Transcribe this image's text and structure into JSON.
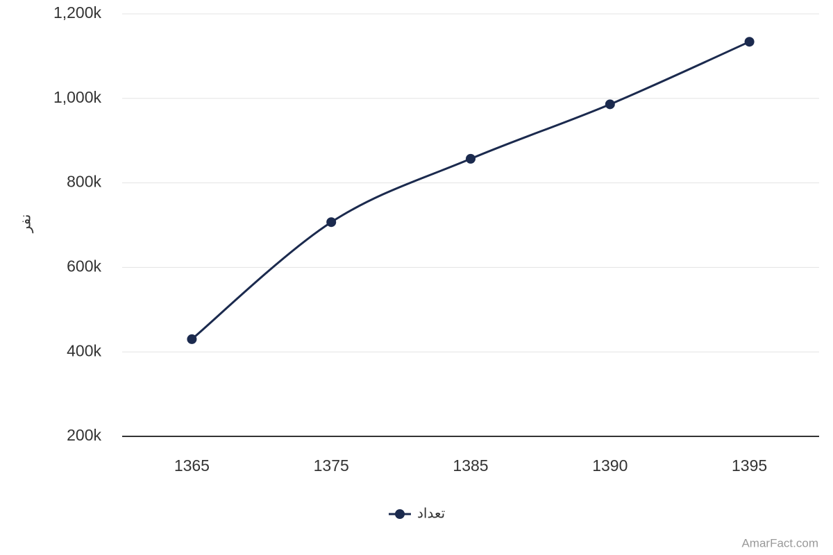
{
  "chart_data": {
    "type": "line",
    "y_axis_title": "نفر",
    "categories": [
      "1365",
      "1375",
      "1385",
      "1390",
      "1395"
    ],
    "series": [
      {
        "name": "تعداد",
        "color": "#1b2a4e",
        "values": [
          430000,
          707000,
          857000,
          986000,
          1134000
        ]
      }
    ],
    "ylim": [
      200000,
      1200000
    ],
    "yticks": [
      {
        "value": 200000,
        "label": "200k"
      },
      {
        "value": 400000,
        "label": "400k"
      },
      {
        "value": 600000,
        "label": "600k"
      },
      {
        "value": 800000,
        "label": "800k"
      },
      {
        "value": 1000000,
        "label": "1,000k"
      },
      {
        "value": 1200000,
        "label": "1,200k"
      }
    ],
    "grid": true,
    "credit": "AmarFact.com"
  }
}
